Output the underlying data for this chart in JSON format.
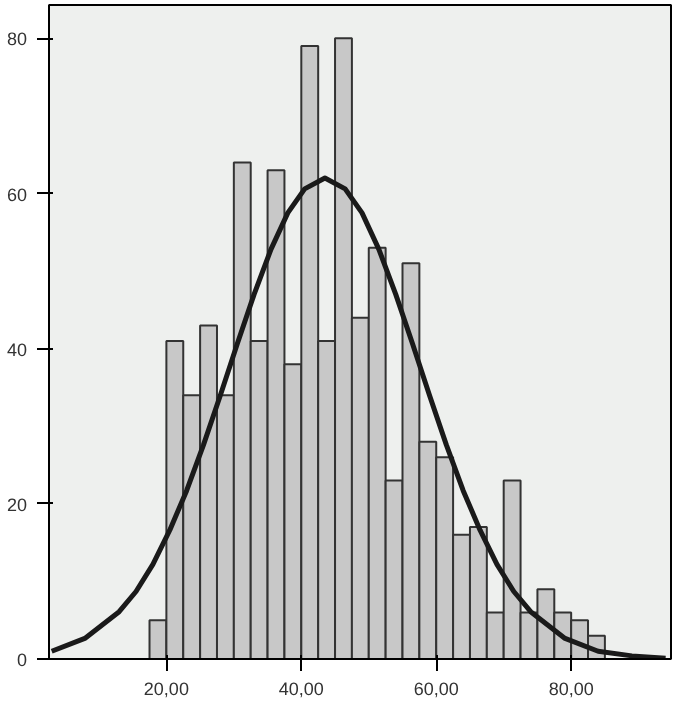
{
  "chart_data": {
    "type": "histogram",
    "bins": [
      17.5,
      20,
      22.5,
      25,
      27.5,
      30,
      32.5,
      35,
      37.5,
      40,
      42.5,
      45,
      47.5,
      50,
      52.5,
      55,
      57.5,
      60,
      62.5,
      65,
      67.5,
      70,
      72.5,
      75,
      77.5,
      80,
      82.5,
      85
    ],
    "values": [
      5,
      41,
      34,
      43,
      34,
      64,
      41,
      63,
      38,
      79,
      41,
      80,
      44,
      53,
      23,
      51,
      28,
      26,
      16,
      17,
      6,
      23,
      6,
      9,
      6,
      5,
      3
    ],
    "color": "#c8c8c8",
    "series": [
      {
        "type": "line",
        "color": "#1a1a1a",
        "x": [
          3,
          8,
          13,
          15.5,
          18,
          20.5,
          23,
          25.5,
          28,
          30.5,
          33,
          35.5,
          38,
          40.5,
          43.5,
          46.5,
          49,
          51.5,
          54,
          56.5,
          59,
          61.5,
          64,
          66.5,
          69,
          71.5,
          74,
          79,
          84,
          89,
          94
        ],
        "values": [
          1.0,
          2.7,
          6.1,
          8.7,
          12.2,
          16.6,
          21.7,
          27.6,
          34.0,
          40.6,
          47.0,
          52.8,
          57.5,
          60.6,
          62,
          60.6,
          57.5,
          52.8,
          47.0,
          40.6,
          34.0,
          27.6,
          21.7,
          16.6,
          12.2,
          8.7,
          6.1,
          2.7,
          1.0,
          0.4,
          0.1
        ]
      }
    ],
    "xlim": [
      2.6,
      94.8
    ],
    "ylim": [
      0,
      84.3
    ],
    "xticks": [
      {
        "value": 20,
        "label": "20,00"
      },
      {
        "value": 40,
        "label": "40,00"
      },
      {
        "value": 60,
        "label": "60,00"
      },
      {
        "value": 80,
        "label": "80,00"
      }
    ],
    "yticks": [
      0,
      20,
      40,
      60,
      80
    ],
    "grid": false
  }
}
